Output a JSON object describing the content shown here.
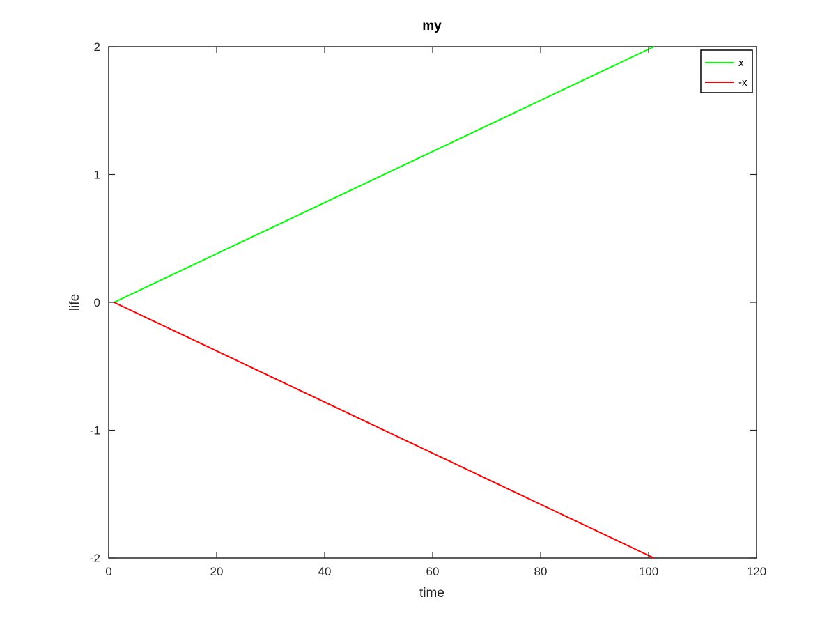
{
  "chart_data": {
    "type": "line",
    "title": "my",
    "xlabel": "time",
    "ylabel": "life",
    "xlim": [
      0,
      120
    ],
    "ylim": [
      -2,
      2
    ],
    "xticks": [
      0,
      20,
      40,
      60,
      80,
      100,
      120
    ],
    "yticks": [
      -2,
      -1,
      0,
      1,
      2
    ],
    "grid": false,
    "legend_position": "top-right",
    "series": [
      {
        "name": "x",
        "color": "#00ff00",
        "x": [
          1,
          101
        ],
        "y": [
          0,
          2
        ]
      },
      {
        "name": "-x",
        "color": "#ff0000",
        "x": [
          1,
          101
        ],
        "y": [
          0,
          -2
        ]
      }
    ]
  }
}
